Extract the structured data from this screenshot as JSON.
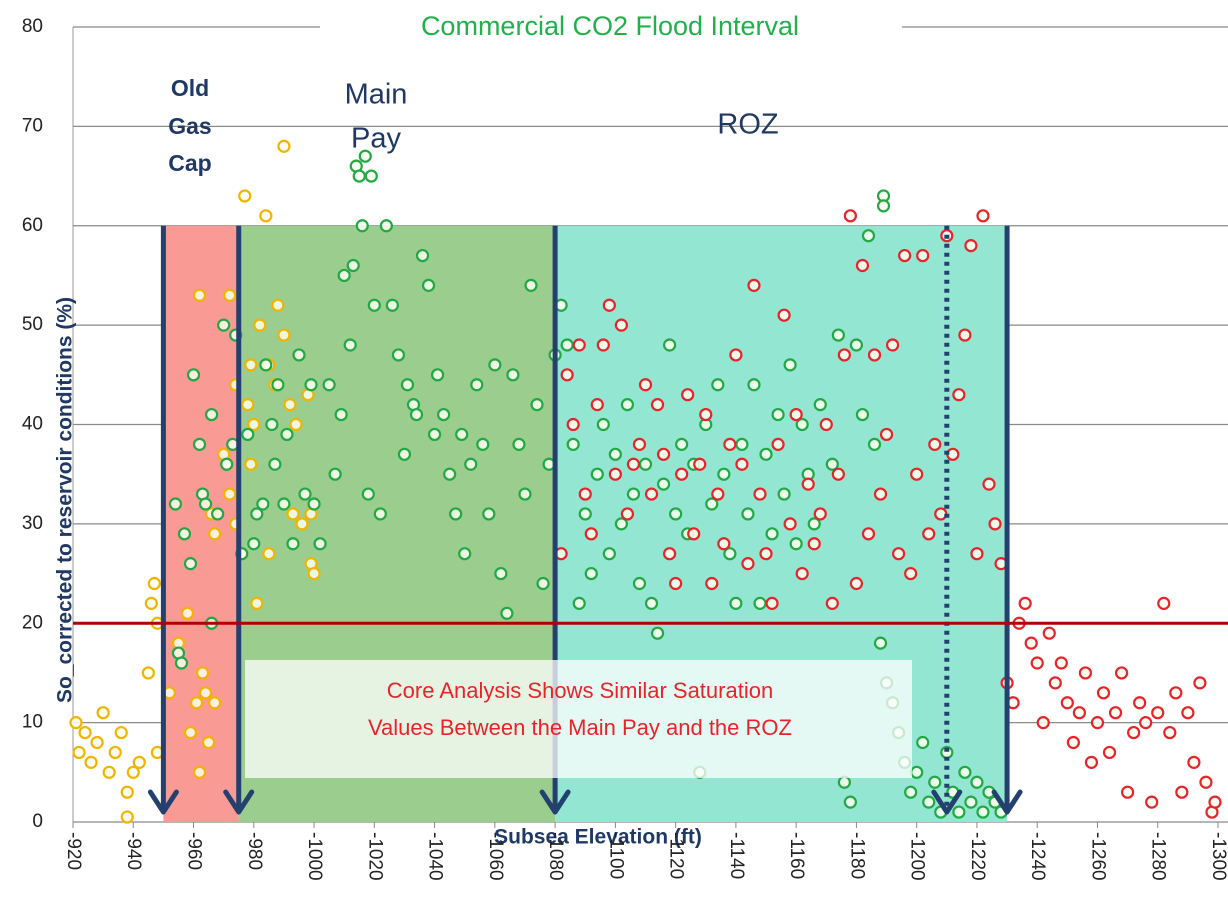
{
  "chart_data": {
    "type": "scatter",
    "title": "Commercial CO2 Flood Interval",
    "xlabel": "Subsea Elevation (ft)",
    "ylabel": "So_corrected to reservoir conditions (%)",
    "annotations": {
      "old_gas_cap": [
        "Old",
        "Gas",
        "Cap"
      ],
      "main_pay": [
        "Main",
        "Pay"
      ],
      "roz": "ROZ",
      "callout": [
        "Core Analysis Shows Similar Saturation",
        "Values Between the Main Pay and the ROZ"
      ]
    },
    "xlim": [
      -920,
      -1300
    ],
    "ylim": [
      0,
      80
    ],
    "xticks": [
      -920,
      -940,
      -960,
      -980,
      -1000,
      -1020,
      -1040,
      -1060,
      -1080,
      -1100,
      -1120,
      -1140,
      -1160,
      -1180,
      -1200,
      -1220,
      -1240,
      -1260,
      -1280,
      -1300
    ],
    "yticks": [
      0,
      10,
      20,
      30,
      40,
      50,
      60,
      70,
      80
    ],
    "grid": true,
    "bands": [
      {
        "from": -950,
        "to": -975,
        "top": 60,
        "color": "#f99a94"
      },
      {
        "from": -975,
        "to": -1080,
        "top": 60,
        "color": "#9bcd8e"
      },
      {
        "from": -1080,
        "to": -1230,
        "top": 60,
        "color": "#93e6d2"
      }
    ],
    "arrows": [
      {
        "x": -950,
        "from": 60,
        "to": 1,
        "dotted": false
      },
      {
        "x": -975,
        "from": 60,
        "to": 1,
        "dotted": false
      },
      {
        "x": -1080,
        "from": 60,
        "to": 1,
        "dotted": false
      },
      {
        "x": -1210,
        "from": 60,
        "to": 1,
        "dotted": true
      },
      {
        "x": -1230,
        "from": 60,
        "to": 1,
        "dotted": false
      }
    ],
    "reference_line": {
      "value": 20,
      "color": "#b00000"
    },
    "series": [
      {
        "color": "#f2b400",
        "x": [
          -921,
          -922,
          -924,
          -926,
          -928,
          -930,
          -932,
          -934,
          -936,
          -938,
          -938,
          -940,
          -942,
          -945,
          -946,
          -947,
          -948,
          -948,
          -952,
          -955,
          -958,
          -959,
          -961,
          -962,
          -963,
          -964,
          -965,
          -967,
          -966,
          -967,
          -970,
          -971,
          -972,
          -974,
          -974,
          -976,
          -977,
          -978,
          -980,
          -982,
          -984,
          -985,
          -985,
          -987,
          -988,
          -990,
          -990,
          -992,
          -993,
          -994,
          -996,
          -998,
          -999,
          -999,
          -1000,
          -972,
          -962,
          -979,
          -981,
          -979
        ],
        "values": [
          10,
          7,
          9,
          6,
          8,
          11,
          5,
          7,
          9,
          3,
          0.5,
          5,
          6,
          15,
          22,
          24,
          20,
          7,
          13,
          18,
          21,
          9,
          12,
          5,
          15,
          13,
          8,
          12,
          31,
          29,
          37,
          36,
          33,
          30,
          44,
          27,
          63,
          42,
          40,
          50,
          61,
          46,
          27,
          44,
          52,
          49,
          68,
          42,
          31,
          40,
          30,
          43,
          26,
          31,
          25,
          53,
          53,
          46,
          22,
          36
        ]
      },
      {
        "color": "#22a845",
        "x": [
          -954,
          -955,
          -956,
          -957,
          -959,
          -960,
          -962,
          -963,
          -964,
          -966,
          -966,
          -968,
          -970,
          -971,
          -973,
          -974,
          -976,
          -978,
          -980,
          -981,
          -983,
          -984,
          -986,
          -987,
          -988,
          -990,
          -991,
          -993,
          -995,
          -997,
          -999,
          -1000,
          -1002,
          -1005,
          -1007,
          -1009,
          -1010,
          -1012,
          -1013,
          -1014,
          -1015,
          -1016,
          -1017,
          -1018,
          -1019,
          -1020,
          -1022,
          -1024,
          -1026,
          -1028,
          -1030,
          -1031,
          -1033,
          -1034,
          -1036,
          -1038,
          -1040,
          -1041,
          -1043,
          -1045,
          -1047,
          -1049,
          -1050,
          -1052,
          -1054,
          -1056,
          -1058,
          -1060,
          -1062,
          -1064,
          -1066,
          -1068,
          -1070,
          -1072,
          -1074,
          -1076,
          -1078,
          -1080,
          -1082,
          -1084,
          -1086,
          -1088,
          -1090,
          -1092,
          -1094,
          -1096,
          -1098,
          -1100,
          -1102,
          -1104,
          -1106,
          -1108,
          -1110,
          -1112,
          -1114,
          -1116,
          -1118,
          -1120,
          -1122,
          -1124,
          -1126,
          -1128,
          -1130,
          -1132,
          -1134,
          -1136,
          -1138,
          -1140,
          -1142,
          -1144,
          -1146,
          -1148,
          -1150,
          -1152,
          -1154,
          -1156,
          -1158,
          -1160,
          -1162,
          -1164,
          -1166,
          -1168,
          -1189,
          -1189,
          -1172,
          -1174,
          -1176,
          -1178,
          -1180,
          -1182,
          -1184,
          -1186,
          -1188,
          -1190,
          -1192,
          -1194,
          -1196,
          -1198,
          -1200,
          -1202,
          -1204,
          -1206,
          -1208,
          -1210,
          -1212,
          -1214,
          -1216,
          -1218,
          -1220,
          -1222,
          -1224,
          -1226,
          -1228
        ],
        "values": [
          32,
          17,
          16,
          29,
          26,
          45,
          38,
          33,
          32,
          20,
          41,
          31,
          50,
          36,
          38,
          49,
          27,
          39,
          28,
          31,
          32,
          46,
          40,
          36,
          44,
          32,
          39,
          28,
          47,
          33,
          44,
          32,
          28,
          44,
          35,
          41,
          55,
          48,
          56,
          66,
          65,
          60,
          67,
          33,
          65,
          52,
          31,
          60,
          52,
          47,
          37,
          44,
          42,
          41,
          57,
          54,
          39,
          45,
          41,
          35,
          31,
          39,
          27,
          36,
          44,
          38,
          31,
          46,
          25,
          21,
          45,
          38,
          33,
          54,
          42,
          24,
          36,
          47,
          52,
          48,
          38,
          22,
          31,
          25,
          35,
          40,
          27,
          37,
          30,
          42,
          33,
          24,
          36,
          22,
          19,
          34,
          48,
          31,
          38,
          29,
          36,
          5,
          40,
          32,
          44,
          35,
          27,
          22,
          38,
          31,
          44,
          22,
          37,
          29,
          41,
          33,
          46,
          28,
          40,
          35,
          30,
          42,
          63,
          62,
          36,
          49,
          4,
          2,
          48,
          41,
          59,
          38,
          18,
          14,
          12,
          9,
          6,
          3,
          5,
          8,
          2,
          4,
          1,
          7,
          3,
          1,
          5,
          2,
          4,
          1,
          3,
          2,
          1
        ]
      },
      {
        "color": "#e8232a",
        "x": [
          -1082,
          -1084,
          -1086,
          -1088,
          -1090,
          -1092,
          -1094,
          -1096,
          -1098,
          -1100,
          -1102,
          -1104,
          -1106,
          -1108,
          -1110,
          -1112,
          -1114,
          -1116,
          -1118,
          -1120,
          -1122,
          -1124,
          -1126,
          -1128,
          -1130,
          -1132,
          -1134,
          -1136,
          -1138,
          -1140,
          -1142,
          -1144,
          -1146,
          -1148,
          -1150,
          -1152,
          -1154,
          -1156,
          -1158,
          -1160,
          -1162,
          -1164,
          -1166,
          -1168,
          -1170,
          -1172,
          -1174,
          -1176,
          -1178,
          -1180,
          -1182,
          -1184,
          -1186,
          -1188,
          -1190,
          -1192,
          -1194,
          -1196,
          -1198,
          -1200,
          -1202,
          -1204,
          -1206,
          -1208,
          -1210,
          -1212,
          -1214,
          -1216,
          -1218,
          -1220,
          -1222,
          -1224,
          -1226,
          -1228,
          -1230,
          -1232,
          -1234,
          -1236,
          -1238,
          -1240,
          -1242,
          -1244,
          -1246,
          -1248,
          -1250,
          -1252,
          -1254,
          -1256,
          -1258,
          -1260,
          -1262,
          -1264,
          -1266,
          -1268,
          -1270,
          -1272,
          -1274,
          -1276,
          -1278,
          -1280,
          -1282,
          -1284,
          -1286,
          -1288,
          -1290,
          -1292,
          -1294,
          -1296,
          -1298,
          -1299
        ],
        "values": [
          27,
          45,
          40,
          48,
          33,
          29,
          42,
          48,
          52,
          35,
          50,
          31,
          36,
          38,
          44,
          33,
          42,
          37,
          27,
          24,
          35,
          43,
          29,
          36,
          41,
          24,
          33,
          28,
          38,
          47,
          36,
          26,
          54,
          33,
          27,
          22,
          38,
          51,
          30,
          41,
          25,
          34,
          28,
          31,
          40,
          22,
          35,
          47,
          61,
          24,
          56,
          29,
          47,
          33,
          39,
          48,
          27,
          57,
          25,
          35,
          57,
          29,
          38,
          31,
          59,
          37,
          43,
          49,
          58,
          27,
          61,
          34,
          30,
          26,
          14,
          12,
          20,
          22,
          18,
          16,
          10,
          19,
          14,
          16,
          12,
          8,
          11,
          15,
          6,
          10,
          13,
          7,
          11,
          15,
          3,
          9,
          12,
          10,
          2,
          11,
          22,
          9,
          13,
          3,
          11,
          6,
          14,
          4,
          1,
          2
        ]
      }
    ]
  }
}
